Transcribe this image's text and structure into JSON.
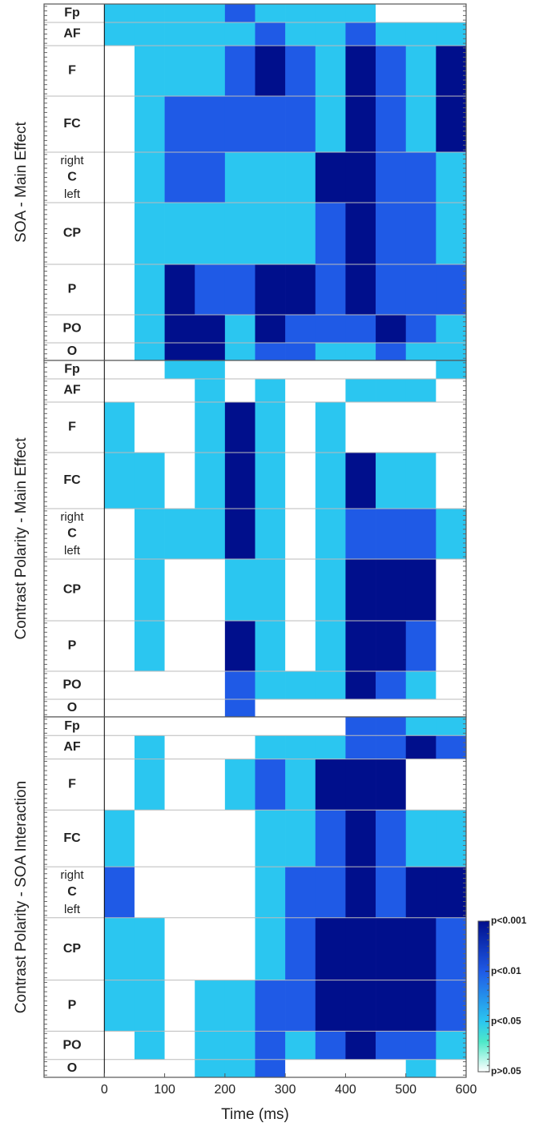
{
  "chart_data": [
    {
      "type": "heatmap",
      "ylabel": "SOA - Main Effect",
      "rows": [
        "Fp",
        "AF",
        "F",
        "FC",
        "C",
        "CP",
        "P",
        "PO",
        "O"
      ],
      "hemisphere_labels": [
        "right",
        "left"
      ],
      "x_bins": [
        -100,
        -50,
        0,
        50,
        100,
        150,
        200,
        250,
        300,
        350,
        400,
        450,
        500,
        550,
        600
      ],
      "vline": 0,
      "values": [
        [
          0,
          0,
          1,
          1,
          1,
          1,
          2,
          1,
          1,
          1,
          1,
          0,
          0,
          0
        ],
        [
          0,
          0,
          1,
          1,
          1,
          1,
          1,
          2,
          1,
          1,
          2,
          1,
          1,
          1
        ],
        [
          0,
          0,
          0,
          1,
          1,
          1,
          2,
          3,
          2,
          1,
          3,
          2,
          1,
          3
        ],
        [
          0,
          0,
          0,
          1,
          2,
          2,
          2,
          2,
          2,
          1,
          3,
          2,
          1,
          3
        ],
        [
          0,
          0,
          0,
          1,
          2,
          2,
          1,
          1,
          1,
          3,
          3,
          2,
          2,
          1
        ],
        [
          0,
          0,
          0,
          1,
          1,
          1,
          1,
          1,
          1,
          2,
          3,
          2,
          2,
          1
        ],
        [
          0,
          0,
          0,
          1,
          3,
          2,
          2,
          3,
          3,
          2,
          3,
          2,
          2,
          2
        ],
        [
          0,
          0,
          0,
          1,
          3,
          3,
          1,
          3,
          2,
          2,
          2,
          3,
          2,
          1
        ],
        [
          0,
          0,
          0,
          1,
          3,
          3,
          1,
          2,
          2,
          1,
          1,
          2,
          1,
          1
        ]
      ]
    },
    {
      "type": "heatmap",
      "ylabel": "Contrast Polarity - Main Effect",
      "rows": [
        "Fp",
        "AF",
        "F",
        "FC",
        "C",
        "CP",
        "P",
        "PO",
        "O"
      ],
      "hemisphere_labels": [
        "right",
        "left"
      ],
      "x_bins": [
        -100,
        -50,
        0,
        50,
        100,
        150,
        200,
        250,
        300,
        350,
        400,
        450,
        500,
        550,
        600
      ],
      "vline": 0,
      "values": [
        [
          0,
          0,
          0,
          0,
          1,
          1,
          0,
          0,
          0,
          0,
          0,
          0,
          0,
          1
        ],
        [
          0,
          0,
          0,
          0,
          0,
          1,
          0,
          1,
          0,
          0,
          1,
          1,
          1,
          0
        ],
        [
          0,
          0,
          1,
          0,
          0,
          1,
          3,
          1,
          0,
          1,
          0,
          0,
          0,
          0
        ],
        [
          0,
          0,
          1,
          1,
          0,
          1,
          3,
          1,
          0,
          1,
          3,
          1,
          1,
          0
        ],
        [
          0,
          0,
          0,
          1,
          1,
          1,
          3,
          1,
          0,
          1,
          2,
          2,
          2,
          1
        ],
        [
          0,
          0,
          0,
          1,
          0,
          0,
          1,
          1,
          0,
          1,
          3,
          3,
          3,
          0
        ],
        [
          0,
          0,
          0,
          1,
          0,
          0,
          3,
          1,
          0,
          1,
          3,
          3,
          2,
          0
        ],
        [
          0,
          0,
          0,
          0,
          0,
          0,
          2,
          1,
          1,
          1,
          3,
          2,
          1,
          0
        ],
        [
          0,
          0,
          0,
          0,
          0,
          0,
          2,
          0,
          0,
          0,
          0,
          0,
          0,
          0
        ]
      ]
    },
    {
      "type": "heatmap",
      "ylabel": "Contrast Polarity - SOA Interaction",
      "rows": [
        "Fp",
        "AF",
        "F",
        "FC",
        "C",
        "CP",
        "P",
        "PO",
        "O"
      ],
      "hemisphere_labels": [
        "right",
        "left"
      ],
      "x_bins": [
        -100,
        -50,
        0,
        50,
        100,
        150,
        200,
        250,
        300,
        350,
        400,
        450,
        500,
        550,
        600
      ],
      "vline": 0,
      "values": [
        [
          0,
          0,
          0,
          0,
          0,
          0,
          0,
          0,
          0,
          0,
          2,
          2,
          1,
          1
        ],
        [
          0,
          0,
          0,
          1,
          0,
          0,
          0,
          1,
          1,
          1,
          2,
          2,
          3,
          2
        ],
        [
          0,
          0,
          0,
          1,
          0,
          0,
          1,
          2,
          1,
          3,
          3,
          3,
          0,
          0
        ],
        [
          0,
          0,
          1,
          0,
          0,
          0,
          0,
          1,
          1,
          2,
          3,
          2,
          1,
          1
        ],
        [
          0,
          0,
          2,
          0,
          0,
          0,
          0,
          1,
          2,
          2,
          3,
          2,
          3,
          3
        ],
        [
          0,
          0,
          1,
          1,
          0,
          0,
          0,
          1,
          2,
          3,
          3,
          3,
          3,
          2
        ],
        [
          0,
          0,
          1,
          1,
          0,
          1,
          1,
          2,
          2,
          3,
          3,
          3,
          3,
          2
        ],
        [
          0,
          0,
          0,
          1,
          0,
          1,
          1,
          2,
          1,
          2,
          3,
          2,
          2,
          1
        ],
        [
          0,
          0,
          0,
          0,
          0,
          1,
          1,
          2,
          0,
          0,
          0,
          0,
          1,
          0
        ]
      ],
      "xlabel": "Time (ms)",
      "xlim": [
        -100,
        600
      ],
      "xticks": [
        0,
        100,
        200,
        300,
        400,
        500,
        600
      ],
      "colorbar": {
        "lim": [
          0,
          3
        ],
        "colors": [
          "#ffffff",
          "#2bc6f0",
          "#1f5ae6",
          "#000f8c"
        ],
        "ticks": [
          {
            "value": 0,
            "label": "p>0.05"
          },
          {
            "value": 1,
            "label": "p<0.05"
          },
          {
            "value": 2,
            "label": "p<0.01"
          },
          {
            "value": 3,
            "label": "p<0.001"
          }
        ]
      }
    }
  ]
}
